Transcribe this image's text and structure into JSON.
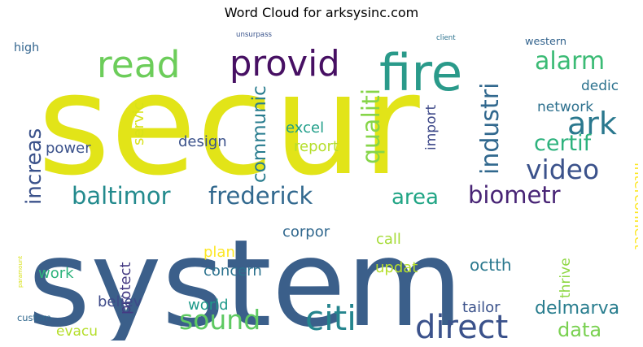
{
  "title": "Word Cloud for arksysinc.com",
  "words": [
    {
      "text": "secur",
      "color": "#e2e418"
    },
    {
      "text": "system",
      "color": "#3b5f8a"
    },
    {
      "text": "fire",
      "color": "#2a9a8a"
    },
    {
      "text": "read",
      "color": "#6ccd5a"
    },
    {
      "text": "provid",
      "color": "#471063"
    },
    {
      "text": "western",
      "color": "#33638d"
    },
    {
      "text": "alarm",
      "color": "#3bbb75"
    },
    {
      "text": "high",
      "color": "#32648e"
    },
    {
      "text": "unsurpass",
      "color": "#3a548c"
    },
    {
      "text": "client",
      "color": "#2c728e"
    },
    {
      "text": "increas",
      "color": "#3b528b"
    },
    {
      "text": "ark",
      "color": "#2a788e"
    },
    {
      "text": "industri",
      "color": "#31688e"
    },
    {
      "text": "communic",
      "color": "#287c8e"
    },
    {
      "text": "qualiti",
      "color": "#86d549"
    },
    {
      "text": "dedic",
      "color": "#2c728e"
    },
    {
      "text": "network",
      "color": "#2d708e"
    },
    {
      "text": "servic",
      "color": "#d8e219"
    },
    {
      "text": "design",
      "color": "#3b528b"
    },
    {
      "text": "excel",
      "color": "#1f9e89"
    },
    {
      "text": "report",
      "color": "#b5de2b"
    },
    {
      "text": "import",
      "color": "#3e4989"
    },
    {
      "text": "power",
      "color": "#3b528b"
    },
    {
      "text": "certif",
      "color": "#2db27d"
    },
    {
      "text": "video",
      "color": "#3b528b"
    },
    {
      "text": "interconnect",
      "color": "#fde725"
    },
    {
      "text": "baltimor",
      "color": "#238a8d"
    },
    {
      "text": "frederick",
      "color": "#31688e"
    },
    {
      "text": "area",
      "color": "#21a585"
    },
    {
      "text": "biometr",
      "color": "#482475"
    },
    {
      "text": "paramount",
      "color": "#d8e219"
    },
    {
      "text": "protect",
      "color": "#443a83"
    },
    {
      "text": "corpor",
      "color": "#31688e"
    },
    {
      "text": "call",
      "color": "#a5db36"
    },
    {
      "text": "plan",
      "color": "#fde725"
    },
    {
      "text": "work",
      "color": "#2eb37c"
    },
    {
      "text": "concern",
      "color": "#2c728e"
    },
    {
      "text": "updat",
      "color": "#b5de2b"
    },
    {
      "text": "octth",
      "color": "#2a788e"
    },
    {
      "text": "thrive",
      "color": "#8fd744"
    },
    {
      "text": "custom",
      "color": "#31688e"
    },
    {
      "text": "believ",
      "color": "#3e4a89"
    },
    {
      "text": "world",
      "color": "#1f9a8a"
    },
    {
      "text": "sound",
      "color": "#5ec962"
    },
    {
      "text": "citi",
      "color": "#25858e"
    },
    {
      "text": "direct",
      "color": "#3b528b"
    },
    {
      "text": "tailor",
      "color": "#3b528b"
    },
    {
      "text": "delmarva",
      "color": "#287d8e"
    },
    {
      "text": "evacu",
      "color": "#b5de2b"
    },
    {
      "text": "data",
      "color": "#7ad151"
    }
  ]
}
